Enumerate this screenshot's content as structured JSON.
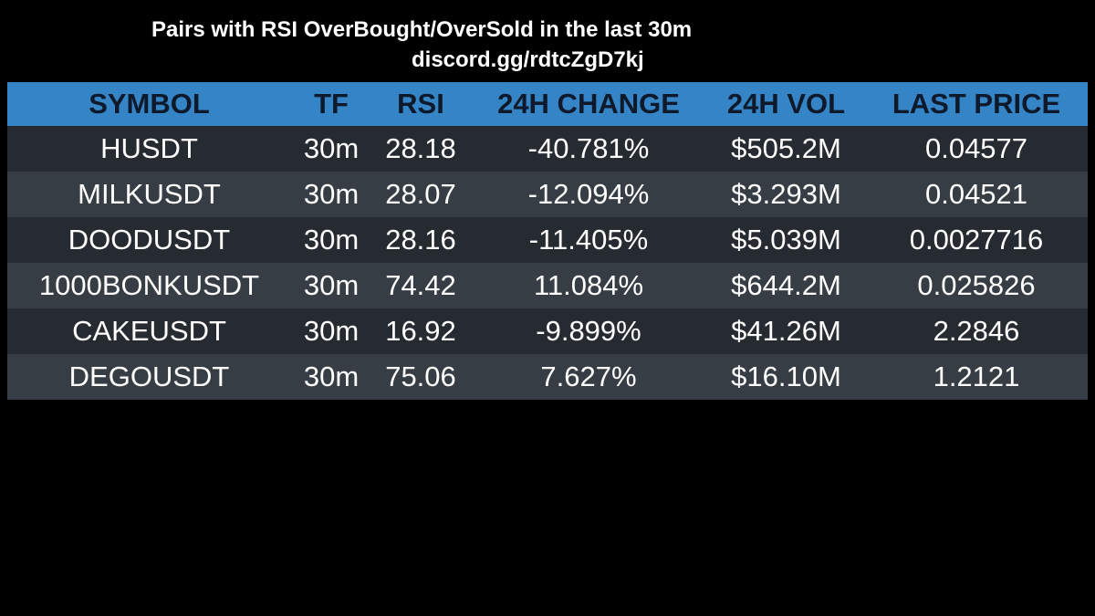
{
  "header": {
    "title": "Pairs with RSI OverBought/OverSold in the last 30m",
    "subtitle": "discord.gg/rdtcZgD7kj"
  },
  "table": {
    "columns": [
      "SYMBOL",
      "TF",
      "RSI",
      "24H CHANGE",
      "24H VOL",
      "LAST PRICE"
    ],
    "rows": [
      [
        "HUSDT",
        "30m",
        "28.18",
        "-40.781%",
        "$505.2M",
        "0.04577"
      ],
      [
        "MILKUSDT",
        "30m",
        "28.07",
        "-12.094%",
        "$3.293M",
        "0.04521"
      ],
      [
        "DOODUSDT",
        "30m",
        "28.16",
        "-11.405%",
        "$5.039M",
        "0.0027716"
      ],
      [
        "1000BONKUSDT",
        "30m",
        "74.42",
        "11.084%",
        "$644.2M",
        "0.025826"
      ],
      [
        "CAKEUSDT",
        "30m",
        "16.92",
        "-9.899%",
        "$41.26M",
        "2.2846"
      ],
      [
        "DEGOUSDT",
        "30m",
        "75.06",
        "7.627%",
        "$16.10M",
        "1.2121"
      ]
    ]
  },
  "colors": {
    "header_bg": "#3584c5",
    "row_dark": "#252b31",
    "row_light": "#363d44"
  }
}
